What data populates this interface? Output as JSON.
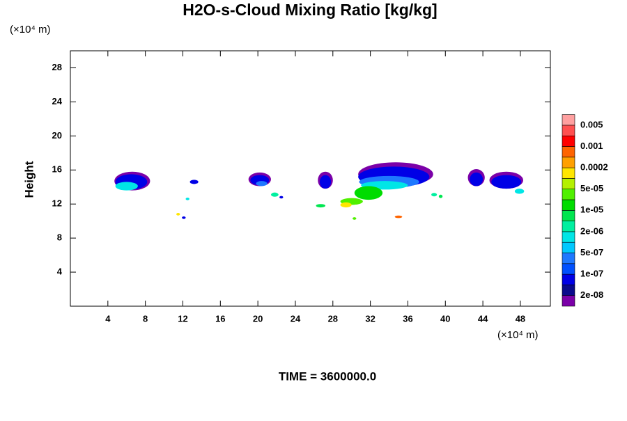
{
  "chart_data": {
    "type": "contour",
    "title": "H2O-s-Cloud Mixing Ratio [kg/kg]",
    "y_unit": "(×10⁴ m)",
    "x_unit": "(×10⁴ m)",
    "ylabel": "Height",
    "footer": "TIME = 3600000.0",
    "xlim": [
      0,
      51.2
    ],
    "ylim": [
      0,
      30
    ],
    "xticks": [
      4,
      8,
      12,
      16,
      20,
      24,
      28,
      32,
      36,
      40,
      44,
      48
    ],
    "yticks": [
      4,
      8,
      12,
      16,
      20,
      24,
      28
    ],
    "colorbar": {
      "colors": [
        "#7b00a8",
        "#0a0a8c",
        "#0000e6",
        "#0050ff",
        "#1e78ff",
        "#00c8ff",
        "#00e6e6",
        "#00f0a0",
        "#00e650",
        "#00dc00",
        "#50f000",
        "#b4f000",
        "#ffe600",
        "#ffa000",
        "#ff6400",
        "#ff0000",
        "#ff5050",
        "#ffa0a0"
      ],
      "levels": [
        {
          "value": 2e-08,
          "label": "2e-08"
        },
        {
          "value": 1e-07,
          "label": "1e-07"
        },
        {
          "value": 5e-07,
          "label": "5e-07"
        },
        {
          "value": 2e-06,
          "label": "2e-06"
        },
        {
          "value": 1e-05,
          "label": "1e-05"
        },
        {
          "value": 5e-05,
          "label": "5e-05"
        },
        0.0002,
        0.001,
        0.005
      ]
    },
    "contours": [
      {
        "x": 6.6,
        "y": 14.7,
        "rx": 1.9,
        "ry": 1.1,
        "value": 1e-08
      },
      {
        "x": 6.5,
        "y": 14.6,
        "rx": 1.7,
        "ry": 0.9,
        "value": 8e-08
      },
      {
        "x": 6.0,
        "y": 14.1,
        "rx": 1.2,
        "ry": 0.5,
        "value": 1e-06
      },
      {
        "x": 13.2,
        "y": 14.6,
        "rx": 0.45,
        "ry": 0.25,
        "value": 5e-08
      },
      {
        "x": 20.2,
        "y": 14.9,
        "rx": 1.2,
        "ry": 0.8,
        "value": 1e-08
      },
      {
        "x": 20.2,
        "y": 14.8,
        "rx": 1.0,
        "ry": 0.6,
        "value": 8e-08
      },
      {
        "x": 20.4,
        "y": 14.4,
        "rx": 0.6,
        "ry": 0.3,
        "value": 4e-07
      },
      {
        "x": 27.2,
        "y": 14.8,
        "rx": 0.8,
        "ry": 1.0,
        "value": 1e-08
      },
      {
        "x": 27.2,
        "y": 14.6,
        "rx": 0.6,
        "ry": 0.8,
        "value": 8e-08
      },
      {
        "x": 34.7,
        "y": 15.5,
        "rx": 4.0,
        "ry": 1.4,
        "value": 1e-08
      },
      {
        "x": 34.5,
        "y": 15.2,
        "rx": 3.8,
        "ry": 1.2,
        "value": 8e-08
      },
      {
        "x": 34.0,
        "y": 14.6,
        "rx": 3.2,
        "ry": 0.7,
        "value": 4e-07
      },
      {
        "x": 33.5,
        "y": 14.2,
        "rx": 2.5,
        "ry": 0.5,
        "value": 1.5e-06
      },
      {
        "x": 31.8,
        "y": 13.3,
        "rx": 1.5,
        "ry": 0.8,
        "value": 1e-05
      },
      {
        "x": 30.0,
        "y": 12.3,
        "rx": 1.2,
        "ry": 0.4,
        "value": 3e-05
      },
      {
        "x": 29.4,
        "y": 11.9,
        "rx": 0.6,
        "ry": 0.3,
        "value": 0.0001
      },
      {
        "x": 43.3,
        "y": 15.1,
        "rx": 0.9,
        "ry": 1.0,
        "value": 1e-08
      },
      {
        "x": 43.3,
        "y": 14.9,
        "rx": 0.7,
        "ry": 0.8,
        "value": 8e-08
      },
      {
        "x": 46.5,
        "y": 14.8,
        "rx": 1.8,
        "ry": 1.0,
        "value": 1e-08
      },
      {
        "x": 46.5,
        "y": 14.6,
        "rx": 1.6,
        "ry": 0.8,
        "value": 8e-08
      },
      {
        "x": 47.9,
        "y": 13.5,
        "rx": 0.5,
        "ry": 0.3,
        "value": 1.5e-06
      },
      {
        "x": 11.5,
        "y": 10.8,
        "rx": 0.2,
        "ry": 0.15,
        "value": 0.0001
      },
      {
        "x": 12.1,
        "y": 10.4,
        "rx": 0.2,
        "ry": 0.15,
        "value": 8e-08
      },
      {
        "x": 12.5,
        "y": 12.6,
        "rx": 0.2,
        "ry": 0.15,
        "value": 1e-06
      },
      {
        "x": 21.8,
        "y": 13.1,
        "rx": 0.4,
        "ry": 0.25,
        "value": 3e-06
      },
      {
        "x": 22.5,
        "y": 12.8,
        "rx": 0.2,
        "ry": 0.15,
        "value": 8e-08
      },
      {
        "x": 26.7,
        "y": 11.8,
        "rx": 0.5,
        "ry": 0.2,
        "value": 5e-06
      },
      {
        "x": 30.3,
        "y": 10.3,
        "rx": 0.2,
        "ry": 0.15,
        "value": 3e-05
      },
      {
        "x": 35.0,
        "y": 10.5,
        "rx": 0.4,
        "ry": 0.15,
        "value": 0.0005
      },
      {
        "x": 38.8,
        "y": 13.1,
        "rx": 0.3,
        "ry": 0.2,
        "value": 3e-06
      },
      {
        "x": 39.5,
        "y": 12.9,
        "rx": 0.2,
        "ry": 0.2,
        "value": 5e-06
      }
    ]
  }
}
